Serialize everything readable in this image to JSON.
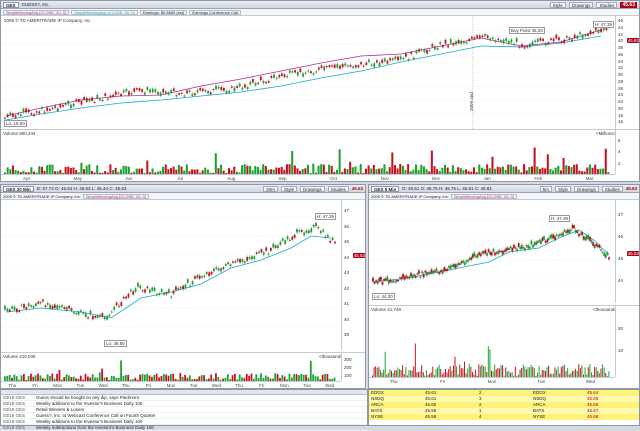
{
  "windows": {
    "top": {
      "symbol": "GES",
      "name": "GUESS?, Inc.",
      "last": "45.63",
      "range_label": "2009 © TD AMERITRADE IP Company, Inc.",
      "study1": "SimpleMovingAvg (CLOSE, 20, 0)",
      "study2": "SimpleMovingAvg (CLOSE, 50, 0)",
      "study3": "Earnings: $0.8669 (est)",
      "study4": "Earnings Conference Call",
      "buttons": {
        "style": "Style",
        "drawings": "Drawings",
        "studies": "Studies"
      },
      "price_ticks": [
        "46",
        "44",
        "42",
        "40",
        "38",
        "36",
        "34",
        "32",
        "30",
        "28",
        "26",
        "24",
        "22",
        "20",
        "18",
        "16"
      ],
      "hi_label": "H: 47.39",
      "lo_label": "Lo: 15.00",
      "buy_label": "Buy Point 45.03",
      "volume_label": "Volume  900,434",
      "volume_scale": "<Millions>",
      "volume_ticks": [
        "6",
        "4",
        "2"
      ],
      "months": [
        "Apr",
        "May",
        "Jun",
        "Jul",
        "Aug",
        "Sep",
        "Oct",
        "Nov",
        "Dec",
        "Jan",
        "Feb",
        "Mar"
      ],
      "year_marker": "2009 and"
    },
    "left": {
      "symbol": "GES 20 Min",
      "name": "GUESS?, Inc.",
      "ohlc": "D: 57.74  O: 45.54  H: 45.63  L: 45.44  C: 45.63",
      "last": "45.63",
      "interval": "20m",
      "range_label": "2009 © TD AMERITRADE IP Company, Inc.",
      "study1": "SimpleMovingAvg (CLOSE, 20, 0)",
      "buttons": {
        "style": "Style",
        "drawings": "Drawings",
        "studies": "Studies"
      },
      "price_ticks": [
        "47",
        "46",
        "45",
        "44",
        "43",
        "42",
        "41",
        "40",
        "39"
      ],
      "hi_label": "H: 47.39",
      "lo_label": "Lo: 38.65",
      "volume_label": "Volume  210,036",
      "volume_scale": "<thousands>",
      "volume_ticks": [
        "300",
        "200",
        "100"
      ],
      "days": [
        "Thu",
        "Fri",
        "Mon",
        "Tue",
        "Wed",
        "Thu",
        "Fri",
        "Mon",
        "Tue",
        "Wed",
        "Thu",
        "Fri",
        "Mon",
        "Tue",
        "Wed"
      ]
    },
    "right": {
      "symbol": "GES 5 Min",
      "name": "GUESS?, Inc.",
      "ohlc": "D: 45.61  O: 45.75  H: 45.75  L: 45.61  C: 45.61",
      "last": "45.63",
      "interval": "5m",
      "range_label": "2009 © TD AMERITRADE IP Company, Inc.",
      "study1": "SimpleMovingAvg (CLOSE, 20, 0)",
      "buttons": {
        "style": "Style",
        "drawings": "Drawings",
        "studies": "Studies"
      },
      "price_ticks": [
        "47",
        "46",
        "45",
        "44"
      ],
      "hi_label": "H: 47.39",
      "lo_label": "Lo: 44.30",
      "volume_label": "Volume  41,748",
      "volume_scale": "<thousands>",
      "volume_ticks": [
        "20",
        "10"
      ],
      "days": [
        "Thu",
        "Fri",
        "Mon",
        "Tue",
        "Wed"
      ]
    }
  },
  "news": [
    {
      "date": "03/18 GES",
      "text": "Guess should be bought on any dip, says Piedmont"
    },
    {
      "date": "03/18 GES",
      "text": "Weekly additions to the Investor's Business Daily 100"
    },
    {
      "date": "03/18 GES",
      "text": "Retail Winners & Losers"
    },
    {
      "date": "03/18 GES",
      "text": "Guess?, Inc. to Webcast Conference Call on Fourth Quarter"
    },
    {
      "date": "03/18 GES",
      "text": "Weekly additions to the Investor's Business Daily 100"
    },
    {
      "date": "03/18 GES",
      "text": "Weekly subtractions from the Investor's Business Daily 100"
    }
  ],
  "level2": [
    {
      "mm": "EDGX",
      "bid": "45.61",
      "size": "2",
      "mm2": "EDGX",
      "ask": "45.64"
    },
    {
      "mm": "NSDQ",
      "bid": "45.61",
      "size": "3",
      "mm2": "NSDQ",
      "ask": "45.65"
    },
    {
      "mm": "ARCA",
      "bid": "45.60",
      "size": "2",
      "mm2": "ARCA",
      "ask": "45.66"
    },
    {
      "mm": "BATS",
      "bid": "45.59",
      "size": "1",
      "mm2": "BATS",
      "ask": "45.67"
    },
    {
      "mm": "NYSE",
      "bid": "45.58",
      "size": "4",
      "mm2": "NYSE",
      "ask": "45.68"
    }
  ]
}
